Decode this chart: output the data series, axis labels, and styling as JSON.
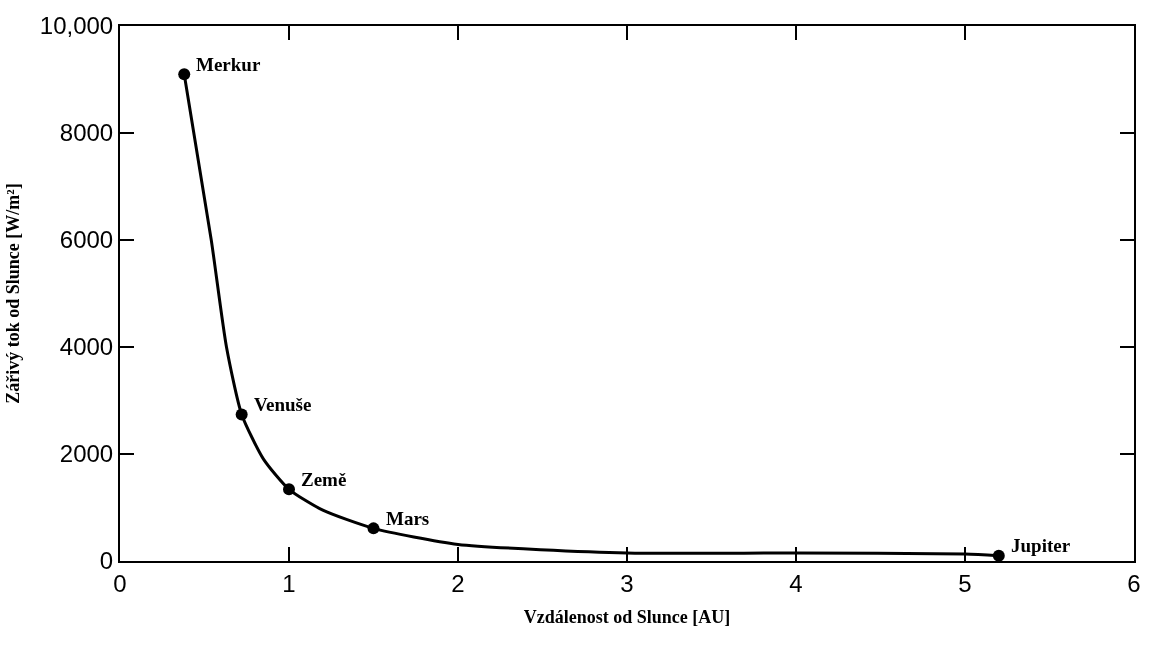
{
  "chart_data": {
    "type": "scatter",
    "xlabel": "Vzdálenost od Slunce [AU]",
    "ylabel": "Zářivý tok od Slunce [W/m²]",
    "series": [
      {
        "type": "line",
        "color": "#000000",
        "marker": "none",
        "x": [
          0.38,
          0.54,
          0.63,
          0.72,
          0.85,
          1.0,
          1.2,
          1.5,
          2.0,
          3.0,
          4.0,
          5.0,
          5.2
        ],
        "values": [
          9100,
          6000,
          4000,
          2740,
          1900,
          1340,
          950,
          610,
          310,
          150,
          150,
          130,
          100
        ]
      },
      {
        "color": "#000000",
        "marker": "circle",
        "x": [
          0.38,
          0.72,
          1.0,
          1.5,
          5.2
        ],
        "values": [
          9100,
          2740,
          1340,
          610,
          100
        ]
      }
    ],
    "annotations": [
      {
        "text": "Merkur",
        "x": 0.38,
        "y": 9100
      },
      {
        "text": "Venuše",
        "x": 0.72,
        "y": 2740
      },
      {
        "text": "Země",
        "x": 1.0,
        "y": 1340
      },
      {
        "text": "Mars",
        "x": 1.5,
        "y": 610
      },
      {
        "text": "Jupiter",
        "x": 5.2,
        "y": 100
      }
    ],
    "xlim": [
      0,
      6
    ],
    "xticks": [
      0,
      1,
      2,
      3,
      4,
      5,
      6
    ],
    "ylim": [
      0,
      10000
    ],
    "yticks": [
      0,
      2000,
      4000,
      6000,
      8000,
      {
        "value": 10000,
        "label": "10,000"
      }
    ],
    "line_style": "solid"
  }
}
